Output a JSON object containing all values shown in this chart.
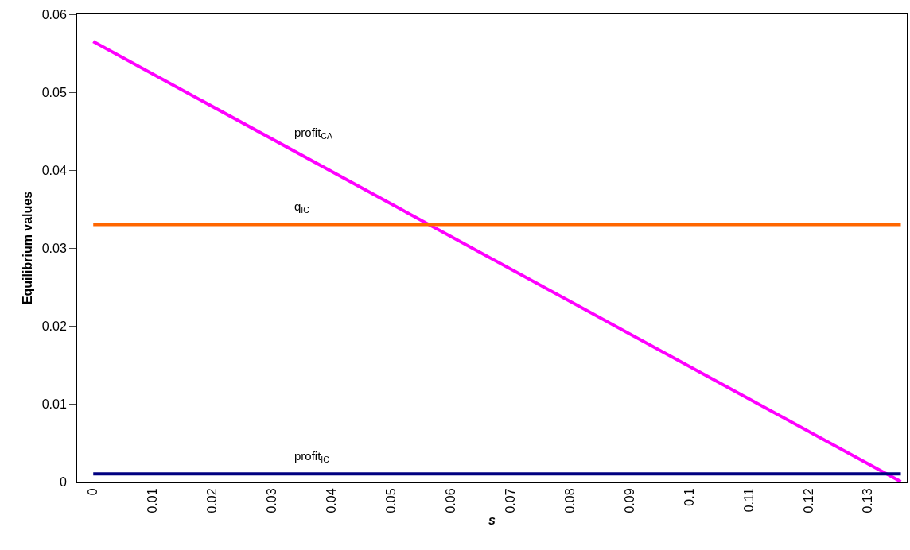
{
  "chart_data": {
    "type": "line",
    "xlabel": "s",
    "ylabel": "Equilibrium values",
    "xlim": [
      -0.0027,
      0.1365
    ],
    "xticks": [
      0,
      0.01,
      0.02,
      0.03,
      0.04,
      0.05,
      0.06,
      0.07,
      0.08,
      0.09,
      0.1,
      0.11,
      0.12,
      0.13
    ],
    "ylim": [
      0,
      0.06
    ],
    "yticks": [
      0,
      0.01,
      0.02,
      0.03,
      0.04,
      0.05,
      0.06
    ],
    "grid": false,
    "legend": false,
    "marker": "none",
    "line_style": "solid",
    "x": [
      0,
      0.1355
    ],
    "series": [
      {
        "name": "profit$_{CA}$",
        "color": "#ff00ff",
        "values": [
          0.0565,
          0
        ]
      },
      {
        "name": "q$_{IC}$",
        "color": "#ff6600",
        "values": [
          0.033,
          0.033
        ]
      },
      {
        "name": "profit$_{IC}$",
        "color": "#000080",
        "values": [
          0.001,
          0.001
        ]
      }
    ]
  }
}
